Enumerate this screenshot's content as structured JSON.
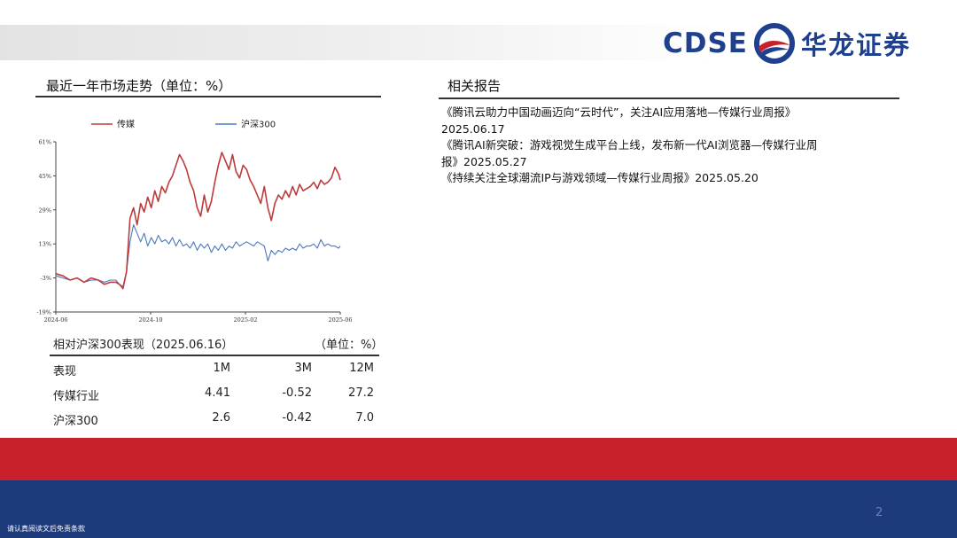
{
  "header": {
    "logo_text": "CDSE",
    "logo_cn": "华龙证券",
    "colors": {
      "brand_blue": "#1f3f8f",
      "brand_red": "#c8212c"
    }
  },
  "market": {
    "title": "最近一年市场走势（单位：%）"
  },
  "chart_data": {
    "type": "line",
    "x_ticks": [
      "2024-06",
      "2024-10",
      "2025-02",
      "2025-06"
    ],
    "y_ticks": [
      "61%",
      "45%",
      "29%",
      "13%",
      "-3%",
      "-19%"
    ],
    "ylim": [
      -19,
      61
    ],
    "legend_position": "top",
    "series": [
      {
        "name": "传媒",
        "color": "#c0393b",
        "x": [
          0,
          8,
          16,
          24,
          32,
          40,
          48,
          55,
          62,
          68,
          72,
          76,
          80,
          84,
          88,
          92,
          96,
          100,
          104,
          108,
          112,
          116,
          120,
          124,
          128,
          132,
          136,
          140,
          144,
          148,
          152,
          156,
          160,
          164,
          168,
          172,
          176,
          180,
          184,
          188,
          192,
          196,
          200,
          204,
          208,
          212,
          216,
          220,
          224,
          228,
          232,
          236,
          240,
          244,
          248,
          252,
          256,
          260,
          264,
          268,
          272,
          276,
          280,
          284,
          288,
          292,
          296,
          300,
          304,
          308,
          312,
          316,
          320,
          322
        ],
        "values": [
          -1,
          -2,
          -4,
          -3,
          -5,
          -3,
          -4,
          -6,
          -5,
          -5,
          -6,
          -8,
          0,
          25,
          30,
          22,
          32,
          28,
          35,
          30,
          38,
          33,
          40,
          37,
          42,
          45,
          50,
          55,
          52,
          48,
          42,
          38,
          30,
          26,
          36,
          28,
          33,
          42,
          50,
          56,
          52,
          48,
          55,
          47,
          44,
          50,
          48,
          43,
          40,
          36,
          32,
          40,
          30,
          24,
          32,
          36,
          34,
          38,
          35,
          40,
          36,
          41,
          38,
          39,
          40,
          42,
          39,
          43,
          41,
          42,
          44,
          49,
          46,
          43
        ]
      },
      {
        "name": "沪深300",
        "color": "#4a78c2",
        "x": [
          0,
          8,
          16,
          24,
          32,
          40,
          48,
          55,
          62,
          68,
          72,
          76,
          80,
          84,
          88,
          92,
          96,
          100,
          104,
          108,
          112,
          116,
          120,
          124,
          128,
          132,
          136,
          140,
          144,
          148,
          152,
          156,
          160,
          164,
          168,
          172,
          176,
          180,
          184,
          188,
          192,
          196,
          200,
          204,
          208,
          212,
          216,
          220,
          224,
          228,
          232,
          236,
          240,
          244,
          248,
          252,
          256,
          260,
          264,
          268,
          272,
          276,
          280,
          284,
          288,
          292,
          296,
          300,
          304,
          308,
          312,
          316,
          320,
          322
        ],
        "values": [
          -2,
          -3,
          -4,
          -3,
          -5,
          -4,
          -4,
          -5,
          -4,
          -4,
          -6,
          -7,
          0,
          14,
          22,
          18,
          14,
          18,
          12,
          16,
          13,
          17,
          14,
          15,
          13,
          16,
          12,
          15,
          12,
          13,
          11,
          14,
          10,
          13,
          11,
          13,
          9,
          12,
          10,
          13,
          10,
          12,
          11,
          14,
          12,
          13,
          14,
          13,
          12,
          14,
          13,
          12,
          5,
          10,
          8,
          10,
          9,
          11,
          10,
          11,
          10,
          13,
          11,
          12,
          12,
          13,
          11,
          15,
          12,
          13,
          12,
          12,
          11,
          12
        ]
      }
    ]
  },
  "performance": {
    "title": "相对沪深300表现（2025.06.16）",
    "unit": "（单位：%）",
    "headers": [
      "表现",
      "1M",
      "3M",
      "12M"
    ],
    "rows": [
      [
        "传媒行业",
        "4.41",
        "-0.52",
        "27.2"
      ],
      [
        "沪深300",
        "2.6",
        "-0.42",
        "7.0"
      ]
    ]
  },
  "reports": {
    "title": "相关报告",
    "lines": [
      "《腾讯云助力中国动画迈向“云时代”，关注AI应用落地—传媒行业周报》",
      "2025.06.17",
      "《腾讯AI新突破：游戏视觉生成平台上线，发布新一代AI浏览器—传媒行业周",
      "报》2025.05.27",
      "《持续关注全球潮流IP与游戏领域—传媒行业周报》2025.05.20"
    ]
  },
  "footer": {
    "page_number": "2",
    "disclaimer": "请认真阅读文后免责条款"
  }
}
